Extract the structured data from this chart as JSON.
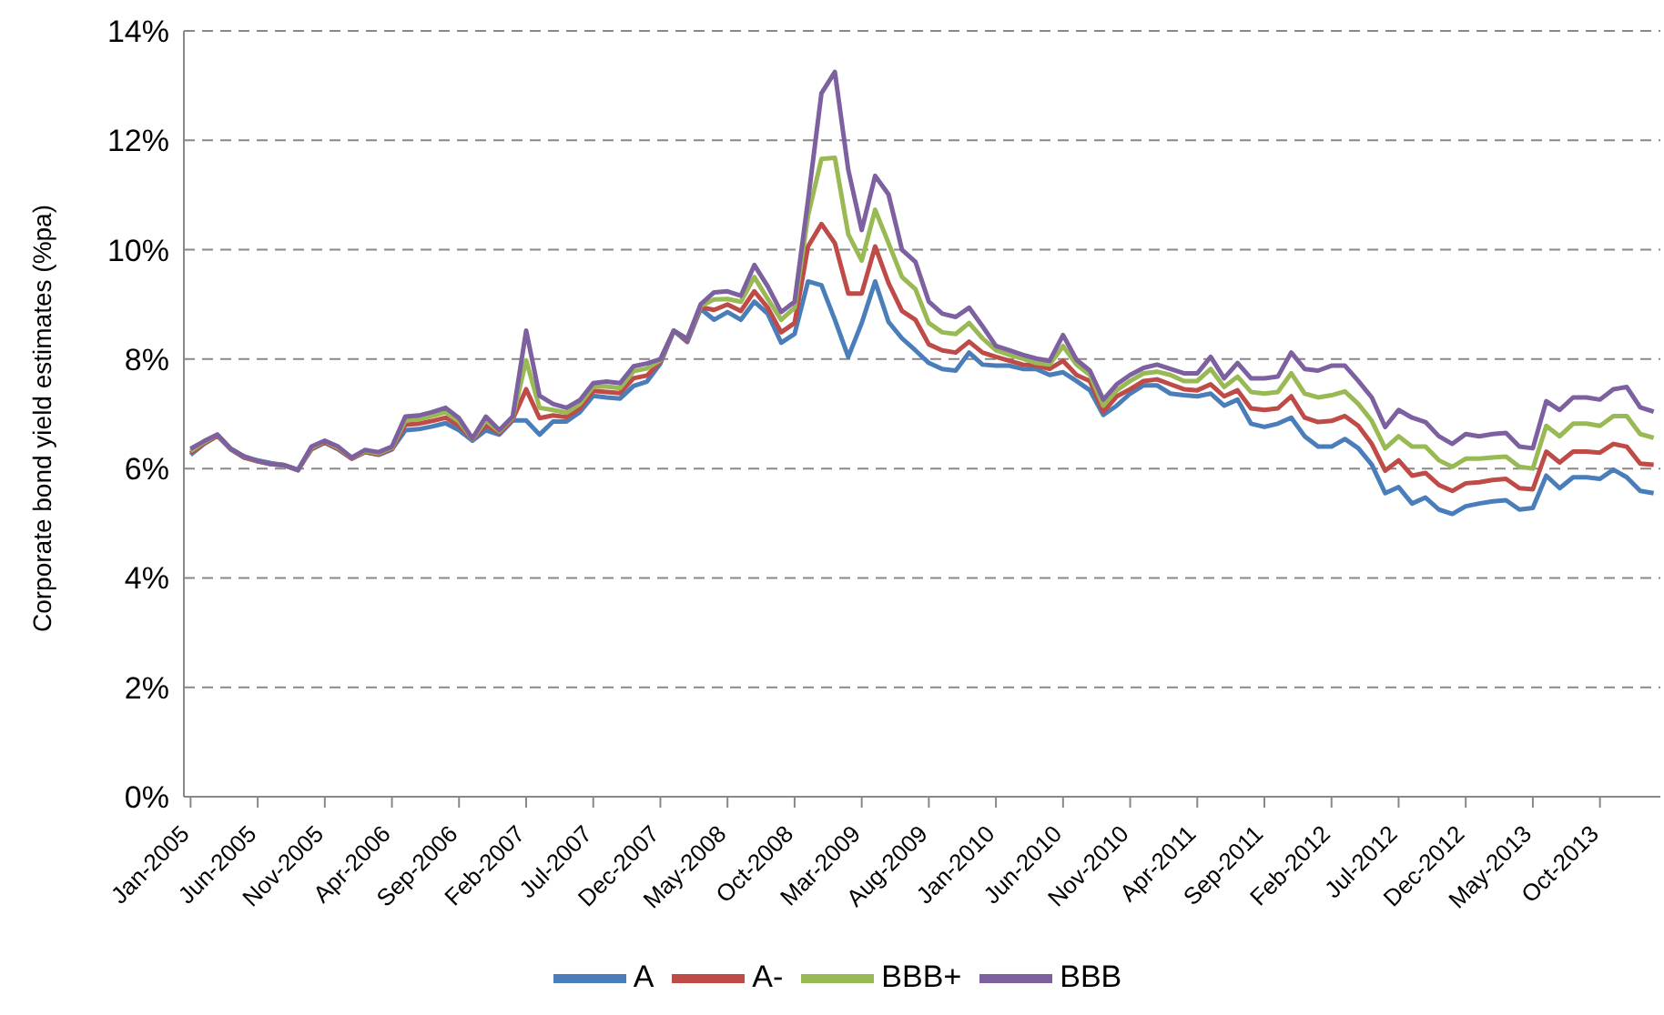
{
  "chart_data": {
    "type": "line",
    "ylabel": "Corporate bond yield estimates (%pa)",
    "categories": [
      "Jan-2005",
      null,
      null,
      null,
      null,
      "Jun-2005",
      null,
      null,
      null,
      null,
      "Nov-2005",
      null,
      null,
      null,
      null,
      "Apr-2006",
      null,
      null,
      null,
      null,
      "Sep-2006",
      null,
      null,
      null,
      null,
      "Feb-2007",
      null,
      null,
      null,
      null,
      "Jul-2007",
      null,
      null,
      null,
      null,
      "Dec-2007",
      null,
      null,
      null,
      null,
      "May-2008",
      null,
      null,
      null,
      null,
      "Oct-2008",
      null,
      null,
      null,
      null,
      "Mar-2009",
      null,
      null,
      null,
      null,
      "Aug-2009",
      null,
      null,
      null,
      null,
      "Jan-2010",
      null,
      null,
      null,
      null,
      "Jun-2010",
      null,
      null,
      null,
      null,
      "Nov-2010",
      null,
      null,
      null,
      null,
      "Apr-2011",
      null,
      null,
      null,
      null,
      "Sep-2011",
      null,
      null,
      null,
      null,
      "Feb-2012",
      null,
      null,
      null,
      null,
      "Jul-2012",
      null,
      null,
      null,
      null,
      "Dec-2012",
      null,
      null,
      null,
      null,
      "May-2013",
      null,
      null,
      null,
      null,
      "Oct-2013",
      null,
      null,
      null,
      null
    ],
    "series": [
      {
        "name": "A",
        "color": "#4a7ebb",
        "values": [
          6.25,
          6.45,
          6.6,
          6.35,
          6.2,
          6.15,
          6.1,
          6.06,
          5.98,
          6.35,
          6.47,
          6.35,
          6.18,
          6.3,
          6.25,
          6.35,
          6.7,
          6.72,
          6.77,
          6.83,
          6.7,
          6.51,
          6.7,
          6.62,
          6.88,
          6.88,
          6.62,
          6.86,
          6.86,
          7.03,
          7.33,
          7.3,
          7.28,
          7.51,
          7.59,
          7.92,
          8.52,
          8.31,
          8.92,
          8.72,
          8.86,
          8.72,
          9.05,
          8.83,
          8.3,
          8.46,
          9.42,
          9.35,
          8.72,
          8.04,
          8.66,
          9.42,
          8.68,
          8.38,
          8.16,
          7.93,
          7.82,
          7.79,
          8.12,
          7.9,
          7.88,
          7.88,
          7.82,
          7.82,
          7.71,
          7.76,
          7.6,
          7.43,
          6.98,
          7.15,
          7.37,
          7.52,
          7.52,
          7.37,
          7.34,
          7.32,
          7.37,
          7.15,
          7.26,
          6.82,
          6.76,
          6.82,
          6.93,
          6.59,
          6.4,
          6.4,
          6.54,
          6.37,
          6.07,
          5.55,
          5.66,
          5.36,
          5.47,
          5.25,
          5.17,
          5.31,
          5.36,
          5.4,
          5.42,
          5.25,
          5.28,
          5.87,
          5.64,
          5.84,
          5.84,
          5.81,
          5.98,
          5.84,
          5.59,
          5.55
        ]
      },
      {
        "name": "A-",
        "color": "#be4b48",
        "values": [
          6.28,
          6.46,
          6.6,
          6.35,
          6.2,
          6.13,
          6.08,
          6.06,
          5.97,
          6.36,
          6.48,
          6.36,
          6.18,
          6.3,
          6.26,
          6.36,
          6.8,
          6.82,
          6.87,
          6.93,
          6.78,
          6.53,
          6.8,
          6.65,
          6.9,
          7.45,
          6.92,
          6.97,
          6.94,
          7.1,
          7.42,
          7.4,
          7.38,
          7.65,
          7.7,
          7.95,
          8.52,
          8.34,
          8.95,
          8.9,
          9.0,
          8.88,
          9.24,
          8.94,
          8.49,
          8.66,
          10.06,
          10.47,
          10.12,
          9.2,
          9.2,
          10.06,
          9.39,
          8.88,
          8.72,
          8.27,
          8.16,
          8.12,
          8.32,
          8.12,
          8.04,
          7.97,
          7.9,
          7.88,
          7.82,
          7.97,
          7.71,
          7.6,
          7.04,
          7.32,
          7.45,
          7.6,
          7.63,
          7.54,
          7.45,
          7.43,
          7.54,
          7.32,
          7.43,
          7.1,
          7.07,
          7.1,
          7.32,
          6.93,
          6.85,
          6.87,
          6.96,
          6.78,
          6.45,
          5.96,
          6.15,
          5.87,
          5.92,
          5.7,
          5.59,
          5.73,
          5.75,
          5.79,
          5.81,
          5.64,
          5.62,
          6.31,
          6.11,
          6.31,
          6.31,
          6.29,
          6.45,
          6.4,
          6.09,
          6.07
        ]
      },
      {
        "name": "BBB+",
        "color": "#98b954",
        "values": [
          6.32,
          6.48,
          6.62,
          6.36,
          6.22,
          6.14,
          6.08,
          6.06,
          5.97,
          6.38,
          6.5,
          6.38,
          6.2,
          6.32,
          6.28,
          6.38,
          6.88,
          6.9,
          6.96,
          7.03,
          6.86,
          6.54,
          6.88,
          6.68,
          6.93,
          7.98,
          7.11,
          7.07,
          7.02,
          7.18,
          7.5,
          7.5,
          7.47,
          7.78,
          7.83,
          7.98,
          8.52,
          8.37,
          8.97,
          9.09,
          9.1,
          9.05,
          9.5,
          9.1,
          8.72,
          8.94,
          10.62,
          11.66,
          11.68,
          10.28,
          9.8,
          10.73,
          10.12,
          9.5,
          9.28,
          8.66,
          8.49,
          8.46,
          8.66,
          8.38,
          8.16,
          8.08,
          8.01,
          7.93,
          7.9,
          8.24,
          7.9,
          7.71,
          7.15,
          7.43,
          7.6,
          7.74,
          7.77,
          7.71,
          7.6,
          7.6,
          7.82,
          7.49,
          7.68,
          7.4,
          7.37,
          7.4,
          7.74,
          7.37,
          7.3,
          7.34,
          7.41,
          7.18,
          6.87,
          6.37,
          6.59,
          6.4,
          6.4,
          6.15,
          6.03,
          6.18,
          6.18,
          6.2,
          6.22,
          6.03,
          6.0,
          6.78,
          6.59,
          6.82,
          6.82,
          6.78,
          6.96,
          6.96,
          6.63,
          6.56
        ]
      },
      {
        "name": "BBB",
        "color": "#7d60a0",
        "values": [
          6.36,
          6.5,
          6.62,
          6.36,
          6.22,
          6.14,
          6.08,
          6.06,
          5.97,
          6.4,
          6.51,
          6.4,
          6.2,
          6.34,
          6.3,
          6.4,
          6.95,
          6.97,
          7.03,
          7.11,
          6.92,
          6.55,
          6.95,
          6.7,
          6.95,
          8.52,
          7.33,
          7.18,
          7.11,
          7.25,
          7.56,
          7.59,
          7.56,
          7.87,
          7.92,
          8.0,
          8.52,
          8.37,
          9.0,
          9.22,
          9.24,
          9.16,
          9.72,
          9.33,
          8.86,
          9.05,
          10.9,
          12.86,
          13.25,
          11.46,
          10.36,
          11.35,
          11.01,
          10.0,
          9.78,
          9.05,
          8.83,
          8.77,
          8.94,
          8.6,
          8.24,
          8.16,
          8.08,
          8.01,
          7.97,
          8.44,
          7.99,
          7.79,
          7.26,
          7.54,
          7.71,
          7.84,
          7.9,
          7.82,
          7.74,
          7.74,
          8.04,
          7.65,
          7.93,
          7.65,
          7.65,
          7.68,
          8.12,
          7.82,
          7.79,
          7.88,
          7.88,
          7.6,
          7.3,
          6.76,
          7.07,
          6.93,
          6.85,
          6.59,
          6.45,
          6.63,
          6.59,
          6.63,
          6.65,
          6.4,
          6.37,
          7.23,
          7.07,
          7.3,
          7.3,
          7.26,
          7.45,
          7.49,
          7.12,
          7.04
        ]
      }
    ],
    "ylim": [
      0,
      14
    ],
    "yticks": [
      {
        "value": 0,
        "label": "0%"
      },
      {
        "value": 2,
        "label": "2%"
      },
      {
        "value": 4,
        "label": "4%"
      },
      {
        "value": 6,
        "label": "6%"
      },
      {
        "value": 8,
        "label": "8%"
      },
      {
        "value": 10,
        "label": "10%"
      },
      {
        "value": 12,
        "label": "12%"
      },
      {
        "value": 14,
        "label": "14%"
      }
    ],
    "grid": "y",
    "legend": "bottom",
    "marker": "none",
    "line_style": "solid"
  }
}
